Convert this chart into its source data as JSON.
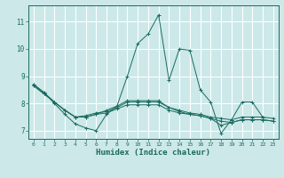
{
  "xlabel": "Humidex (Indice chaleur)",
  "bg_color": "#cce8e8",
  "line_color": "#1a6b60",
  "grid_color": "#ffffff",
  "xlim": [
    -0.5,
    23.5
  ],
  "ylim": [
    6.7,
    11.6
  ],
  "yticks": [
    7,
    8,
    9,
    10,
    11
  ],
  "xticks": [
    0,
    1,
    2,
    3,
    4,
    5,
    6,
    7,
    8,
    9,
    10,
    11,
    12,
    13,
    14,
    15,
    16,
    17,
    18,
    19,
    20,
    21,
    22,
    23
  ],
  "series": [
    [
      8.7,
      8.4,
      8.0,
      7.6,
      7.25,
      7.1,
      7.0,
      7.6,
      7.9,
      9.0,
      10.2,
      10.55,
      11.25,
      8.85,
      10.0,
      9.95,
      8.5,
      8.05,
      6.9,
      7.4,
      8.05,
      8.05,
      7.5,
      null
    ],
    [
      8.7,
      8.4,
      8.05,
      7.75,
      7.5,
      7.55,
      7.65,
      7.7,
      7.85,
      8.05,
      8.05,
      8.05,
      8.05,
      7.85,
      7.75,
      7.65,
      7.6,
      7.5,
      7.45,
      7.4,
      7.5,
      7.5,
      7.5,
      7.45
    ],
    [
      8.65,
      8.35,
      8.05,
      7.75,
      7.5,
      7.5,
      7.6,
      7.65,
      7.8,
      7.95,
      7.95,
      7.95,
      7.95,
      7.75,
      7.65,
      7.6,
      7.55,
      7.45,
      7.35,
      7.3,
      7.4,
      7.4,
      7.4,
      7.35
    ],
    [
      8.65,
      8.35,
      8.05,
      7.75,
      7.5,
      7.5,
      7.6,
      7.75,
      7.9,
      8.1,
      8.1,
      8.1,
      8.1,
      7.85,
      7.7,
      7.6,
      7.55,
      7.45,
      7.2,
      7.3,
      7.4,
      7.4,
      7.4,
      7.35
    ]
  ]
}
